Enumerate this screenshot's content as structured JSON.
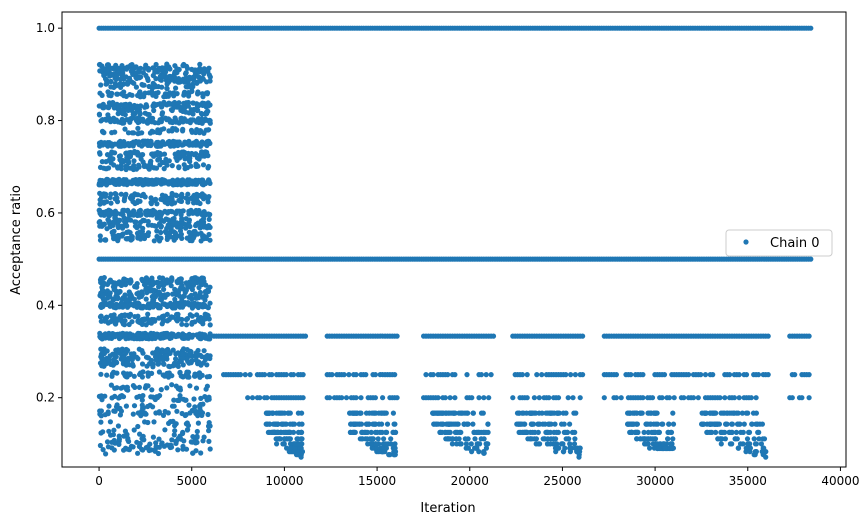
{
  "chart_data": {
    "type": "scatter",
    "xlabel": "Iteration",
    "ylabel": "Acceptance ratio",
    "xlim": [
      -2000,
      40300
    ],
    "ylim": [
      0.05,
      1.035
    ],
    "xticks": [
      0,
      5000,
      10000,
      15000,
      20000,
      25000,
      30000,
      35000,
      40000
    ],
    "xtick_labels": [
      "0",
      "5000",
      "10000",
      "15000",
      "20000",
      "25000",
      "30000",
      "35000",
      "40000"
    ],
    "yticks": [
      0.2,
      0.4,
      0.6,
      0.8,
      1.0
    ],
    "ytick_labels": [
      "0.2",
      "0.4",
      "0.6",
      "0.8",
      "1.0"
    ],
    "legend_position": "center-right",
    "grid": false,
    "color": "#1f77b4",
    "series": [
      {
        "name": "Chain 0",
        "color": "#1f77b4",
        "marker": "dot",
        "bands": [
          {
            "x_range": [
              0,
              38400
            ],
            "y": 1.0,
            "density": "continuous"
          },
          {
            "x_range": [
              0,
              38400
            ],
            "y": 0.5,
            "density": "continuous"
          },
          {
            "x_range": [
              0,
              6000
            ],
            "y_range": [
              0.52,
              0.94
            ],
            "density": "dense"
          },
          {
            "x_range": [
              0,
              6000
            ],
            "y_range": [
              0.27,
              0.47
            ],
            "density": "dense"
          },
          {
            "x_range": [
              0,
              6000
            ],
            "y_range": [
              0.08,
              0.27
            ],
            "density": "sparse"
          },
          {
            "x_range": [
              6000,
              38400
            ],
            "y": 0.333,
            "density": "intermittent"
          },
          {
            "x_range": [
              6500,
              38400
            ],
            "y": 0.25,
            "density": "intermittent"
          },
          {
            "x_range": [
              8000,
              38400
            ],
            "y": 0.2,
            "density": "intermittent"
          }
        ],
        "dips": [
          {
            "x_range": [
              9000,
              11000
            ],
            "y_min": 0.07
          },
          {
            "x_range": [
              13500,
              16000
            ],
            "y_min": 0.07
          },
          {
            "x_range": [
              18000,
              21000
            ],
            "y_min": 0.08
          },
          {
            "x_range": [
              22500,
              26000
            ],
            "y_min": 0.07
          },
          {
            "x_range": [
              28500,
              31000
            ],
            "y_min": 0.09
          },
          {
            "x_range": [
              32500,
              36000
            ],
            "y_min": 0.07
          }
        ]
      }
    ]
  }
}
